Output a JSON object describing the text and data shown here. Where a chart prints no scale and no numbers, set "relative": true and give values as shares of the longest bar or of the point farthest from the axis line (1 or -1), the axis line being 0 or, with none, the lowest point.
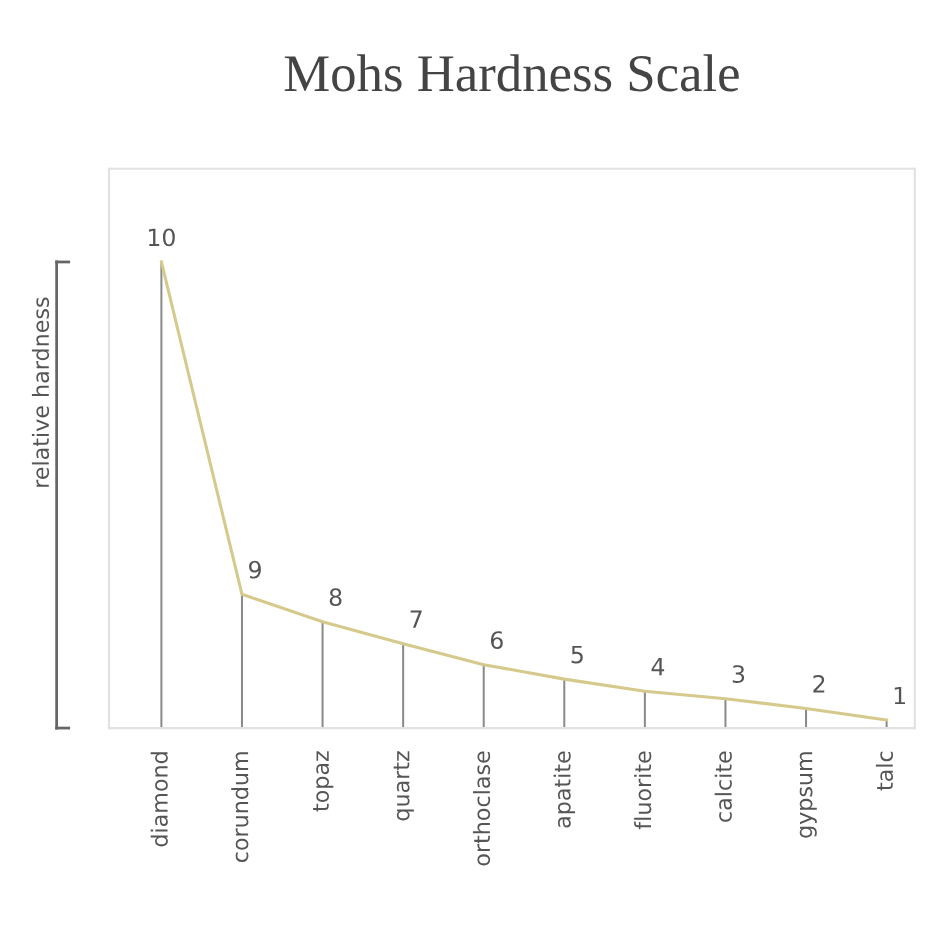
{
  "chart_data": {
    "type": "bar",
    "title": "Mohs Hardness Scale",
    "ylabel": "relative hardness",
    "relative": true,
    "categories": [
      "diamond",
      "corundum",
      "topaz",
      "quartz",
      "orthoclase",
      "apatite",
      "fluorite",
      "calcite",
      "gypsum",
      "talc"
    ],
    "series": [
      {
        "color": "#8a8a8a",
        "values": [
          1,
          0.287,
          0.228,
          0.181,
          0.136,
          0.105,
          0.079,
          0.063,
          0.042,
          0.017
        ]
      },
      {
        "type": "line",
        "color": "#d6c98c",
        "values": [
          1,
          0.287,
          0.228,
          0.181,
          0.136,
          0.105,
          0.079,
          0.063,
          0.042,
          0.017
        ]
      }
    ],
    "annotations": [
      {
        "text": "10",
        "x": "diamond",
        "y": 1
      },
      {
        "text": "9",
        "x": "corundum",
        "y": 0.287
      },
      {
        "text": "8",
        "x": "topaz",
        "y": 0.228
      },
      {
        "text": "7",
        "x": "quartz",
        "y": 0.181
      },
      {
        "text": "6",
        "x": "orthoclase",
        "y": 0.136
      },
      {
        "text": "5",
        "x": "apatite",
        "y": 0.105
      },
      {
        "text": "4",
        "x": "fluorite",
        "y": 0.079
      },
      {
        "text": "3",
        "x": "calcite",
        "y": 0.063
      },
      {
        "text": "2",
        "x": "gypsum",
        "y": 0.042
      },
      {
        "text": "1",
        "x": "talc",
        "y": 0.017
      }
    ],
    "marker": "none",
    "grid": false,
    "legend": false
  }
}
